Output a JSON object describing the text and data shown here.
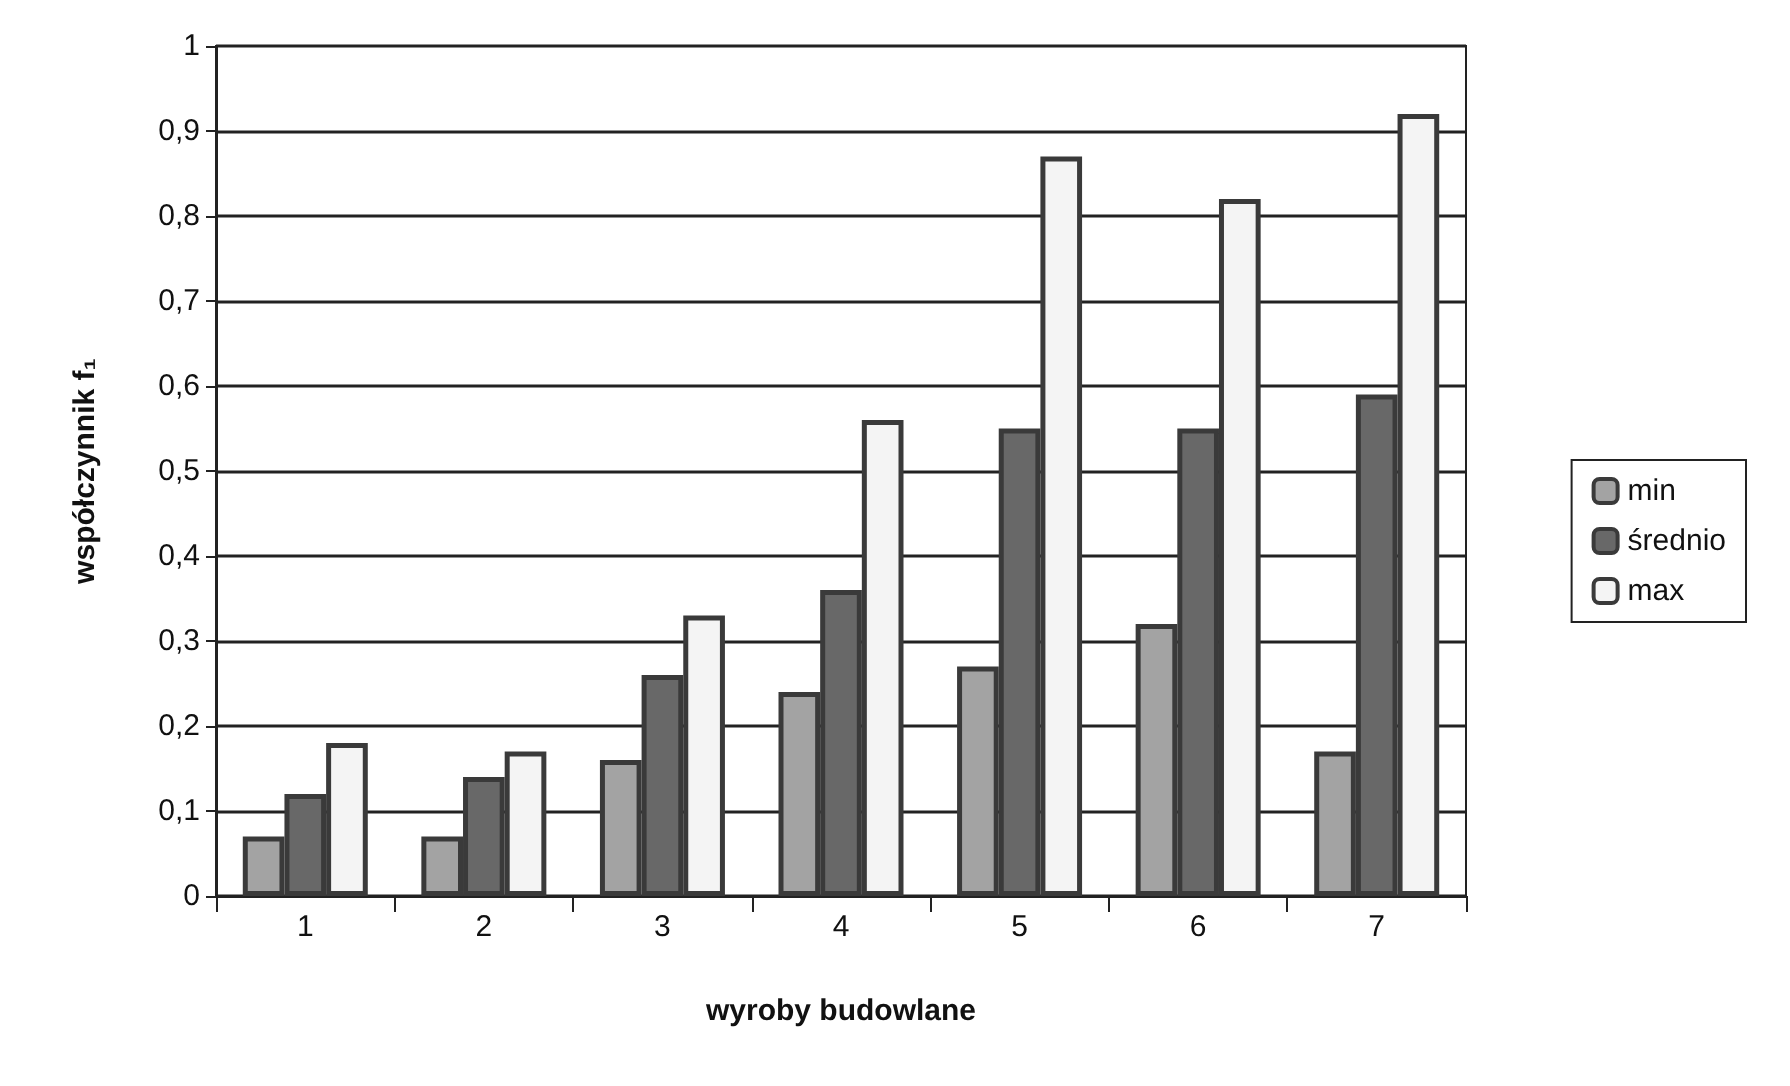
{
  "chart_data": {
    "type": "bar",
    "xlabel": "wyroby budowlane",
    "ylabel": "współczynnik f₁",
    "categories": [
      "1",
      "2",
      "3",
      "4",
      "5",
      "6",
      "7"
    ],
    "series": [
      {
        "name": "min",
        "color": "#a3a3a3",
        "values": [
          0.07,
          0.07,
          0.16,
          0.24,
          0.27,
          0.32,
          0.17
        ]
      },
      {
        "name": "średnio",
        "color": "#686868",
        "values": [
          0.12,
          0.14,
          0.26,
          0.36,
          0.55,
          0.55,
          0.59
        ]
      },
      {
        "name": "max",
        "color": "#f4f4f4",
        "values": [
          0.18,
          0.17,
          0.33,
          0.56,
          0.87,
          0.82,
          0.92
        ]
      }
    ],
    "ylim": [
      0,
      1
    ],
    "yticks": [
      0,
      {
        "value": 0.1,
        "label": "0,1"
      },
      {
        "value": 0.2,
        "label": "0,2"
      },
      {
        "value": 0.3,
        "label": "0,3"
      },
      {
        "value": 0.4,
        "label": "0,4"
      },
      {
        "value": 0.5,
        "label": "0,5"
      },
      {
        "value": 0.6,
        "label": "0,6"
      },
      {
        "value": 0.7,
        "label": "0,7"
      },
      {
        "value": 0.8,
        "label": "0,8"
      },
      {
        "value": 0.9,
        "label": "0,9"
      },
      1
    ],
    "grid": "y",
    "legend": "right"
  }
}
